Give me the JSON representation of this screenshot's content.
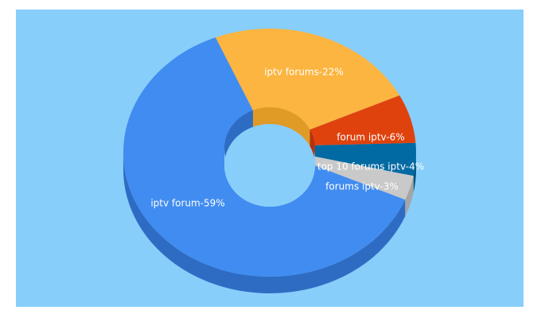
{
  "chart_data": {
    "type": "pie",
    "style": "3d-donut",
    "background_color": "#87CEFA",
    "slices": [
      {
        "label": "iptv forums",
        "value": 22,
        "display": "iptv forums-22%",
        "color": "#FBB540",
        "side_color": "#E09A26"
      },
      {
        "label": "forum iptv",
        "value": 6,
        "display": "forum iptv-6%",
        "color": "#E0420E",
        "side_color": "#B5330A"
      },
      {
        "label": "top 10 forums iptv",
        "value": 4,
        "display": "top 10 forums iptv-4%",
        "color": "#016AA2",
        "side_color": "#01507A"
      },
      {
        "label": "forums iptv",
        "value": 3,
        "display": "forums iptv-3%",
        "color": "#C9C9C9",
        "side_color": "#A5A5A5"
      },
      {
        "label": "iptv forum",
        "value": 59,
        "display": "iptv forum-59%",
        "color": "#418CF0",
        "side_color": "#2E6CC4"
      }
    ]
  }
}
